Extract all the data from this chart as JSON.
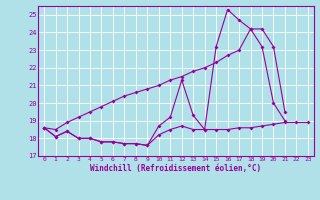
{
  "xlabel": "Windchill (Refroidissement éolien,°C)",
  "bg_color": "#b0e0e8",
  "grid_color": "#ffffff",
  "line_color": "#990099",
  "xlim": [
    -0.5,
    23.5
  ],
  "ylim": [
    17,
    25.5
  ],
  "yticks": [
    17,
    18,
    19,
    20,
    21,
    22,
    23,
    24,
    25
  ],
  "xticks": [
    0,
    1,
    2,
    3,
    4,
    5,
    6,
    7,
    8,
    9,
    10,
    11,
    12,
    13,
    14,
    15,
    16,
    17,
    18,
    19,
    20,
    21,
    22,
    23
  ],
  "series1_x": [
    0,
    1,
    2,
    3,
    4,
    5,
    6,
    7,
    8,
    9,
    10,
    11,
    12,
    13,
    14,
    15,
    16,
    17,
    18,
    19,
    20,
    21,
    22,
    23
  ],
  "series1_y": [
    18.6,
    18.1,
    18.4,
    18.0,
    18.0,
    17.8,
    17.8,
    17.7,
    17.7,
    17.6,
    18.2,
    18.5,
    18.7,
    18.5,
    18.5,
    18.5,
    18.5,
    18.6,
    18.6,
    18.7,
    18.8,
    18.9,
    18.9,
    18.9
  ],
  "series2_x": [
    0,
    1,
    2,
    3,
    4,
    5,
    6,
    7,
    8,
    9,
    10,
    11,
    12,
    13,
    14,
    15,
    16,
    17,
    18,
    19,
    20,
    21,
    22,
    23
  ],
  "series2_y": [
    18.6,
    18.1,
    18.4,
    18.0,
    18.0,
    17.8,
    17.8,
    17.7,
    17.7,
    17.6,
    18.7,
    19.2,
    21.3,
    19.3,
    18.5,
    23.2,
    25.3,
    24.7,
    24.2,
    23.2,
    20.0,
    19.0,
    null,
    null
  ],
  "series3_x": [
    0,
    1,
    2,
    3,
    4,
    5,
    6,
    7,
    8,
    9,
    10,
    11,
    12,
    13,
    14,
    15,
    16,
    17,
    18,
    19,
    20,
    21,
    22,
    23
  ],
  "series3_y": [
    18.6,
    18.5,
    18.9,
    19.2,
    19.5,
    19.8,
    20.1,
    20.4,
    20.6,
    20.8,
    21.0,
    21.3,
    21.5,
    21.8,
    22.0,
    22.3,
    22.7,
    23.0,
    24.2,
    24.2,
    23.2,
    19.5,
    null,
    null
  ]
}
